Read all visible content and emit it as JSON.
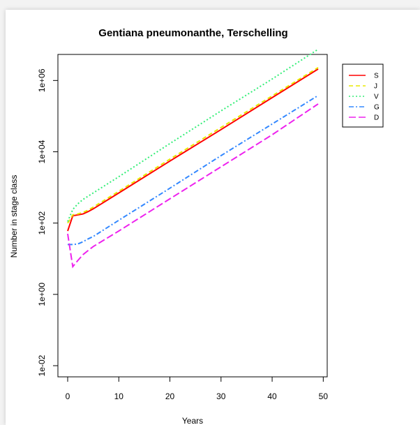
{
  "chart_data": {
    "type": "line",
    "title": "Gentiana pneumonanthe, Terschelling",
    "xlabel": "Years",
    "ylabel": "Number in stage class",
    "x_ticks": [
      0,
      10,
      20,
      30,
      40,
      50
    ],
    "y_ticks": [
      0.01,
      1,
      100,
      10000,
      1000000
    ],
    "y_tick_labels": [
      "1e-02",
      "1e+00",
      "1e+02",
      "1e+04",
      "1e+06"
    ],
    "y_scale": "log",
    "xlim": [
      0,
      49
    ],
    "ylim": [
      0.01,
      2500000
    ],
    "legend_position": "top-right",
    "grid": false,
    "series": [
      {
        "name": "S",
        "color": "#ff0000",
        "dash": "solid",
        "x": [
          0,
          1,
          2,
          3,
          4,
          5,
          10,
          20,
          30,
          40,
          49
        ],
        "values": [
          60,
          160,
          170,
          180,
          210,
          250,
          700,
          5500,
          42000,
          330000,
          2100000
        ]
      },
      {
        "name": "J",
        "color": "#e8e800",
        "dash": "dashed",
        "x": [
          0,
          1,
          2,
          3,
          4,
          5,
          10,
          20,
          30,
          40,
          49
        ],
        "values": [
          100,
          170,
          180,
          200,
          230,
          280,
          780,
          6200,
          48000,
          370000,
          2300000
        ]
      },
      {
        "name": "V",
        "color": "#33ee77",
        "dash": "dotted",
        "x": [
          0,
          1,
          2,
          3,
          4,
          5,
          10,
          20,
          30,
          40,
          49
        ],
        "values": [
          110,
          240,
          350,
          460,
          570,
          700,
          2000,
          17000,
          140000,
          1100000,
          7500000
        ]
      },
      {
        "name": "G",
        "color": "#3388ff",
        "dash": "dashdot",
        "x": [
          0,
          1,
          2,
          3,
          4,
          5,
          10,
          20,
          30,
          40,
          49
        ],
        "values": [
          25,
          25,
          26,
          30,
          36,
          42,
          120,
          950,
          7800,
          60000,
          380000
        ]
      },
      {
        "name": "D",
        "color": "#ee22ee",
        "dash": "longdash",
        "x": [
          0,
          1,
          2,
          3,
          4,
          5,
          10,
          20,
          30,
          40,
          49
        ],
        "values": [
          50,
          6,
          9,
          13,
          17,
          22,
          60,
          480,
          3800,
          30000,
          220000
        ]
      }
    ]
  }
}
